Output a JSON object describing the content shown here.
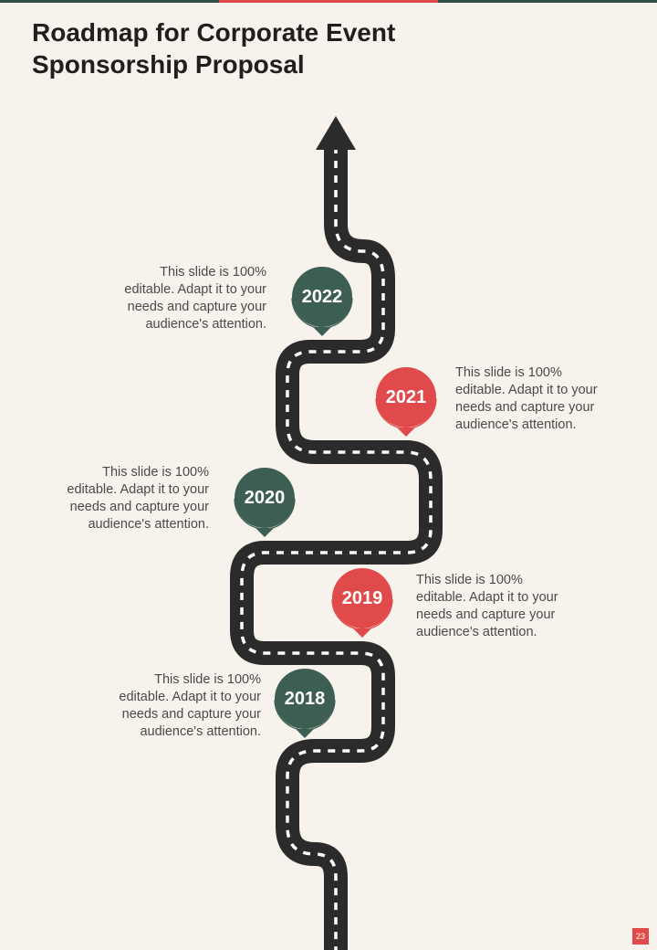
{
  "slide": {
    "title": "Roadmap for Corporate Event Sponsorship Proposal",
    "page_number": "23"
  },
  "milestones": [
    {
      "year": "2022",
      "text": "This slide is 100% editable. Adapt it to your needs and capture your audience's attention.",
      "color": "#3d5f53"
    },
    {
      "year": "2021",
      "text": "This slide is 100% editable. Adapt it to your needs and capture your audience's attention.",
      "color": "#e04a4a"
    },
    {
      "year": "2020",
      "text": "This slide is 100% editable. Adapt it to your needs and capture your audience's attention.",
      "color": "#3d5f53"
    },
    {
      "year": "2019",
      "text": "This slide is 100% editable. Adapt it to your needs and capture your audience's attention.",
      "color": "#e04a4a"
    },
    {
      "year": "2018",
      "text": "This slide is 100% editable. Adapt it to your needs and capture your audience's attention.",
      "color": "#3d5f53"
    }
  ],
  "colors": {
    "background": "#f7f3ec",
    "road": "#2b2b2b",
    "lane_marking": "#ffffff",
    "green": "#3d5f53",
    "red": "#e04a4a"
  }
}
